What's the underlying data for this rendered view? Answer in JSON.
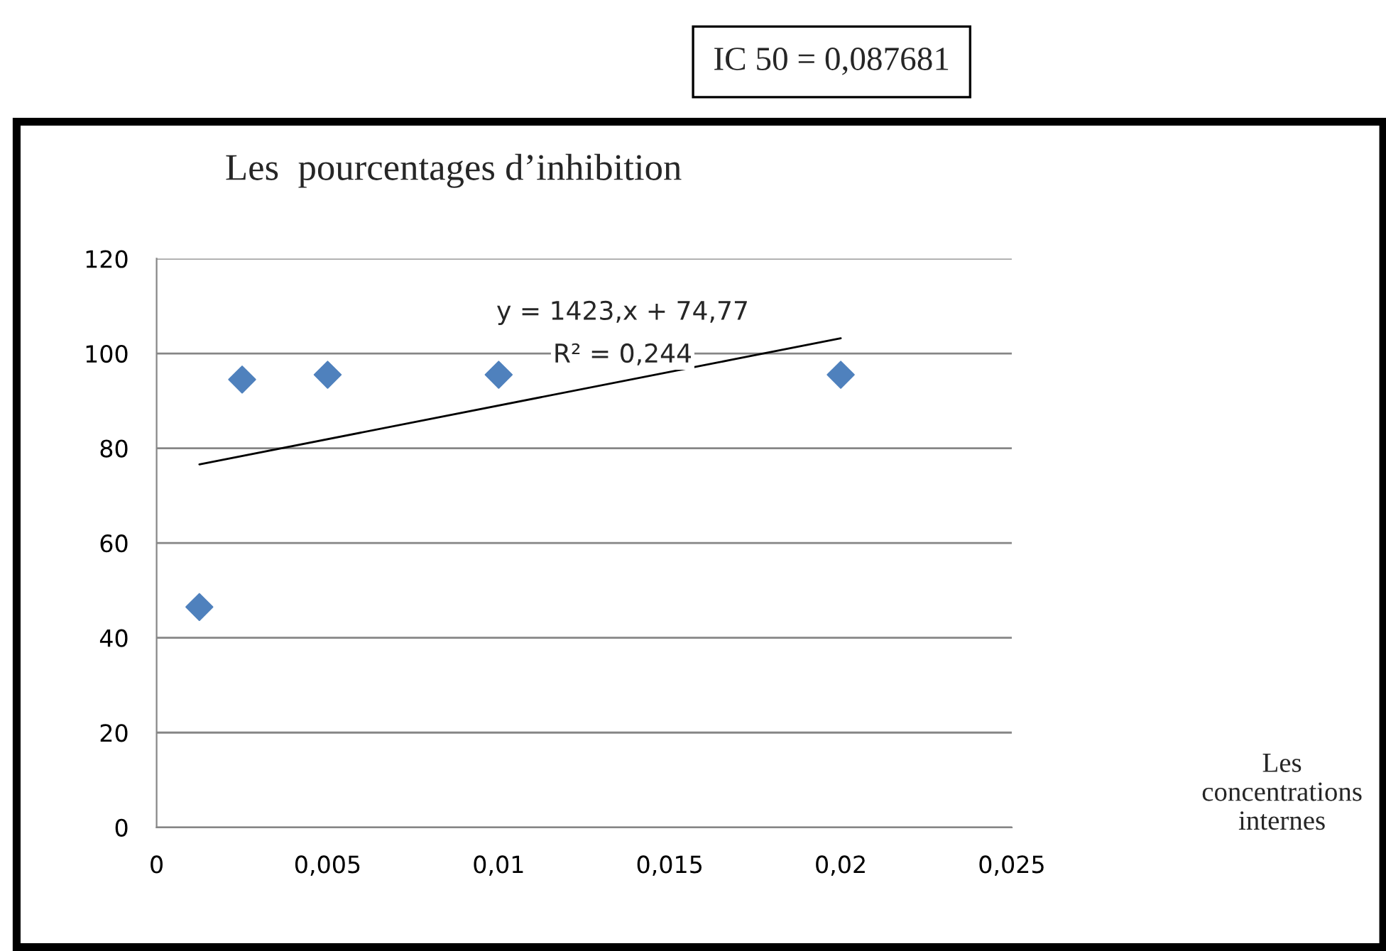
{
  "chart_data": {
    "type": "scatter",
    "title": "Les  pourcentages d’inhibition",
    "series": [
      {
        "color": "#4f81bd",
        "marker": "diamond",
        "x": [
          0.00125,
          0.0025,
          0.005,
          0.01,
          0.02
        ],
        "values": [
          46.5,
          94.5,
          95.5,
          95.5,
          95.5
        ]
      },
      {
        "type": "line",
        "color": "#000000",
        "marker": "none",
        "x": [
          0.00125,
          0.02
        ],
        "values": [
          76.6,
          103.2
        ]
      }
    ],
    "annotations": [
      "y = 1423,x + 74,77",
      "R² = 0,244",
      "IC 50 = 0,087681",
      "Les\nconcentrations\ninternes"
    ],
    "xlim": [
      0,
      0.025
    ],
    "xticks": [
      {
        "value": 0,
        "label": "0"
      },
      {
        "value": 0.005,
        "label": "0,005"
      },
      {
        "value": 0.01,
        "label": "0,01"
      },
      {
        "value": 0.015,
        "label": "0,015"
      },
      {
        "value": 0.02,
        "label": "0,02"
      },
      {
        "value": 0.025,
        "label": "0,025"
      }
    ],
    "ylim": [
      0,
      120
    ],
    "yticks": [
      0,
      20,
      40,
      60,
      80,
      100,
      120
    ],
    "grid": "y",
    "legend": false
  }
}
